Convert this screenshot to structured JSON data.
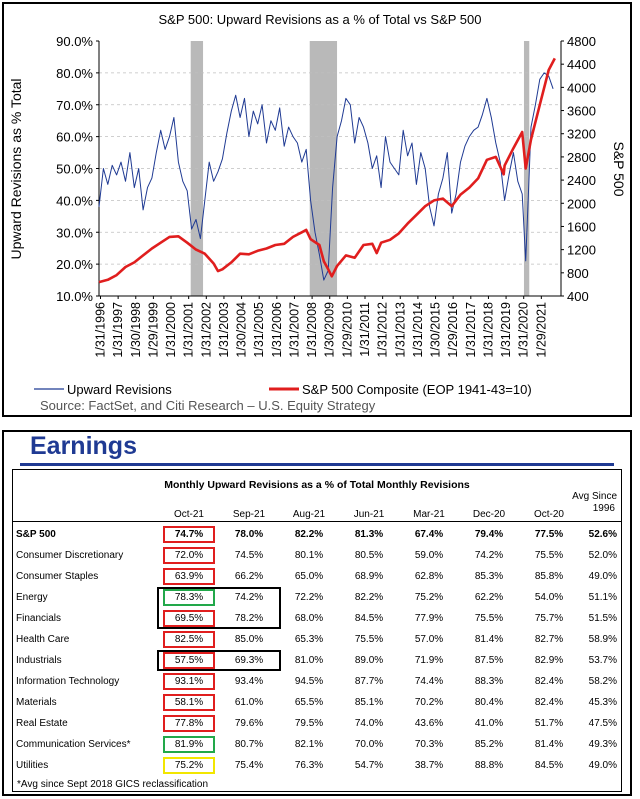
{
  "chart_data": {
    "type": "line",
    "title": "S&P 500: Upward Revisions as a % of Total vs S&P 500",
    "ylabel_left": "Upward Revisions as % Total",
    "ylabel_right": "S&P 500",
    "ylim_left": [
      0.1,
      0.9
    ],
    "ylim_right": [
      400,
      4800
    ],
    "left_ticks": [
      "10.0%",
      "20.0%",
      "30.0%",
      "40.0%",
      "50.0%",
      "60.0%",
      "70.0%",
      "80.0%",
      "90.0%"
    ],
    "right_ticks": [
      "400",
      "800",
      "1200",
      "1600",
      "2000",
      "2400",
      "2800",
      "3200",
      "3600",
      "4000",
      "4400",
      "4800"
    ],
    "x_tick_labels": [
      "1/31/1996",
      "1/31/1997",
      "1/30/1998",
      "1/29/1999",
      "1/31/2000",
      "1/31/2001",
      "1/31/2002",
      "1/31/2003",
      "1/30/2004",
      "1/31/2005",
      "1/31/2006",
      "1/31/2007",
      "1/31/2008",
      "1/30/2009",
      "1/29/2010",
      "1/31/2011",
      "1/31/2012",
      "1/31/2013",
      "1/31/2014",
      "1/30/2015",
      "1/29/2016",
      "1/31/2017",
      "1/31/2018",
      "1/31/2019",
      "1/31/2020",
      "1/29/2021"
    ],
    "grid": true,
    "recessions": [
      [
        2001.2,
        2001.9
      ],
      [
        2007.95,
        2009.5
      ],
      [
        2020.1,
        2020.4
      ]
    ],
    "series": [
      {
        "name": "Upward Revisions",
        "axis": "left",
        "color": "#1f3a93",
        "x": [
          1996.0,
          1996.25,
          1996.5,
          1996.75,
          1997.0,
          1997.25,
          1997.5,
          1997.75,
          1998.0,
          1998.25,
          1998.5,
          1998.75,
          1999.0,
          1999.25,
          1999.5,
          1999.75,
          2000.0,
          2000.25,
          2000.5,
          2000.75,
          2001.0,
          2001.25,
          2001.5,
          2001.75,
          2002.0,
          2002.25,
          2002.5,
          2002.75,
          2003.0,
          2003.25,
          2003.5,
          2003.75,
          2004.0,
          2004.25,
          2004.5,
          2004.75,
          2005.0,
          2005.25,
          2005.5,
          2005.75,
          2006.0,
          2006.25,
          2006.5,
          2006.75,
          2007.0,
          2007.25,
          2007.5,
          2007.75,
          2008.0,
          2008.25,
          2008.5,
          2008.75,
          2009.0,
          2009.25,
          2009.5,
          2009.75,
          2010.0,
          2010.25,
          2010.5,
          2010.75,
          2011.0,
          2011.25,
          2011.5,
          2011.75,
          2012.0,
          2012.25,
          2012.5,
          2012.75,
          2013.0,
          2013.25,
          2013.5,
          2013.75,
          2014.0,
          2014.25,
          2014.5,
          2014.75,
          2015.0,
          2015.25,
          2015.5,
          2015.75,
          2016.0,
          2016.25,
          2016.5,
          2016.75,
          2017.0,
          2017.25,
          2017.5,
          2017.75,
          2018.0,
          2018.25,
          2018.5,
          2018.75,
          2019.0,
          2019.25,
          2019.5,
          2019.75,
          2020.0,
          2020.2,
          2020.35,
          2020.5,
          2020.75,
          2021.0,
          2021.25,
          2021.5,
          2021.75
        ],
        "values": [
          0.38,
          0.5,
          0.45,
          0.51,
          0.48,
          0.52,
          0.46,
          0.55,
          0.44,
          0.5,
          0.37,
          0.44,
          0.47,
          0.55,
          0.62,
          0.56,
          0.6,
          0.66,
          0.52,
          0.46,
          0.43,
          0.31,
          0.34,
          0.28,
          0.4,
          0.52,
          0.46,
          0.49,
          0.53,
          0.61,
          0.68,
          0.73,
          0.66,
          0.72,
          0.6,
          0.68,
          0.64,
          0.7,
          0.58,
          0.65,
          0.62,
          0.69,
          0.57,
          0.63,
          0.6,
          0.58,
          0.52,
          0.56,
          0.4,
          0.3,
          0.23,
          0.15,
          0.18,
          0.44,
          0.6,
          0.65,
          0.72,
          0.7,
          0.58,
          0.66,
          0.63,
          0.58,
          0.5,
          0.54,
          0.44,
          0.6,
          0.52,
          0.5,
          0.48,
          0.62,
          0.54,
          0.58,
          0.45,
          0.55,
          0.5,
          0.38,
          0.32,
          0.42,
          0.47,
          0.55,
          0.36,
          0.42,
          0.52,
          0.57,
          0.6,
          0.62,
          0.63,
          0.67,
          0.72,
          0.66,
          0.58,
          0.52,
          0.4,
          0.48,
          0.55,
          0.46,
          0.42,
          0.21,
          0.42,
          0.63,
          0.7,
          0.78,
          0.8,
          0.79,
          0.75
        ]
      },
      {
        "name": "S&P 500 Composite (EOP 1941-43=10)",
        "axis": "right",
        "color": "#e01e1e",
        "x": [
          1996.0,
          1996.5,
          1997.0,
          1997.5,
          1998.0,
          1998.5,
          1999.0,
          1999.5,
          2000.0,
          2000.5,
          2001.0,
          2001.5,
          2002.0,
          2002.5,
          2002.75,
          2003.0,
          2003.5,
          2004.0,
          2004.5,
          2005.0,
          2005.5,
          2006.0,
          2006.5,
          2007.0,
          2007.5,
          2007.75,
          2008.0,
          2008.5,
          2008.75,
          2009.0,
          2009.2,
          2009.5,
          2010.0,
          2010.5,
          2011.0,
          2011.5,
          2011.75,
          2012.0,
          2012.5,
          2013.0,
          2013.5,
          2014.0,
          2014.5,
          2015.0,
          2015.5,
          2016.0,
          2016.5,
          2017.0,
          2017.5,
          2018.0,
          2018.5,
          2018.95,
          2019.0,
          2019.5,
          2020.0,
          2020.2,
          2020.5,
          2021.0,
          2021.5,
          2021.85
        ],
        "values": [
          640,
          680,
          760,
          900,
          980,
          1100,
          1220,
          1320,
          1420,
          1430,
          1320,
          1200,
          1130,
          960,
          830,
          860,
          980,
          1130,
          1120,
          1180,
          1220,
          1280,
          1300,
          1420,
          1500,
          1540,
          1380,
          1280,
          1000,
          860,
          740,
          920,
          1100,
          1060,
          1280,
          1300,
          1140,
          1320,
          1370,
          1480,
          1650,
          1800,
          1950,
          2050,
          2080,
          1950,
          2150,
          2270,
          2430,
          2750,
          2800,
          2500,
          2650,
          2950,
          3230,
          2600,
          3100,
          3700,
          4300,
          4500
        ]
      }
    ]
  },
  "earnings": {
    "title": "Earnings",
    "table_title": "Monthly Upward Revisions as a % of Total Monthly Revisions",
    "avg_header_line1": "Avg Since",
    "avg_header_line2": "1996",
    "columns": [
      "Oct-21",
      "Sep-21",
      "Aug-21",
      "Jun-21",
      "Mar-21",
      "Dec-20",
      "Oct-20"
    ],
    "rows": [
      {
        "sector": "S&P 500",
        "values": [
          "74.7%",
          "78.0%",
          "82.2%",
          "81.3%",
          "67.4%",
          "79.4%",
          "77.5%"
        ],
        "avg": "52.6%"
      },
      {
        "sector": "Consumer Discretionary",
        "values": [
          "72.0%",
          "74.5%",
          "80.1%",
          "80.5%",
          "59.0%",
          "74.2%",
          "75.5%"
        ],
        "avg": "52.0%"
      },
      {
        "sector": "Consumer Staples",
        "values": [
          "63.9%",
          "66.2%",
          "65.0%",
          "68.9%",
          "62.8%",
          "85.3%",
          "85.8%"
        ],
        "avg": "49.0%"
      },
      {
        "sector": "Energy",
        "values": [
          "78.3%",
          "74.2%",
          "72.2%",
          "82.2%",
          "75.2%",
          "62.2%",
          "54.0%"
        ],
        "avg": "51.1%"
      },
      {
        "sector": "Financials",
        "values": [
          "69.5%",
          "78.2%",
          "68.0%",
          "84.5%",
          "77.9%",
          "75.5%",
          "75.7%"
        ],
        "avg": "51.5%"
      },
      {
        "sector": "Health Care",
        "values": [
          "82.5%",
          "85.0%",
          "65.3%",
          "75.5%",
          "57.0%",
          "81.4%",
          "82.7%"
        ],
        "avg": "58.9%"
      },
      {
        "sector": "Industrials",
        "values": [
          "57.5%",
          "69.3%",
          "81.0%",
          "89.0%",
          "71.9%",
          "87.5%",
          "82.9%"
        ],
        "avg": "53.7%"
      },
      {
        "sector": "Information Technology",
        "values": [
          "93.1%",
          "93.4%",
          "94.5%",
          "87.7%",
          "74.4%",
          "88.3%",
          "82.4%"
        ],
        "avg": "58.2%"
      },
      {
        "sector": "Materials",
        "values": [
          "58.1%",
          "61.0%",
          "65.5%",
          "85.1%",
          "70.2%",
          "80.4%",
          "82.4%"
        ],
        "avg": "45.3%"
      },
      {
        "sector": "Real Estate",
        "values": [
          "77.8%",
          "79.6%",
          "79.5%",
          "74.0%",
          "43.6%",
          "41.0%",
          "51.7%"
        ],
        "avg": "47.5%"
      },
      {
        "sector": "Communication Services*",
        "values": [
          "81.9%",
          "80.7%",
          "82.1%",
          "70.0%",
          "70.3%",
          "85.2%",
          "81.4%"
        ],
        "avg": "49.3%"
      },
      {
        "sector": "Utilities",
        "values": [
          "75.2%",
          "75.4%",
          "76.3%",
          "54.7%",
          "38.7%",
          "88.8%",
          "84.5%"
        ],
        "avg": "49.0%"
      }
    ],
    "footnote": "*Avg since Sept 2018 GICS reclassification",
    "highlight_colors": {
      "red": "#e01e1e",
      "green": "#22a84a",
      "yellow": "#f2e600",
      "black": "#000000"
    }
  },
  "legend_source": "Source: FactSet, and Citi Research – U.S. Equity Strategy"
}
